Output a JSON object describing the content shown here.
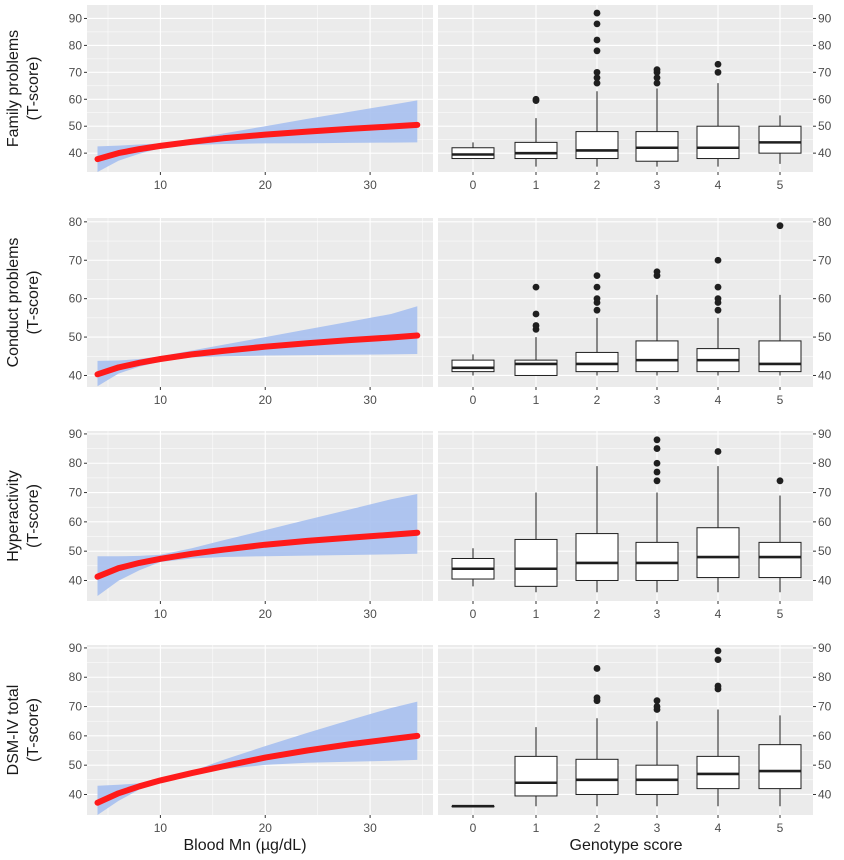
{
  "colors": {
    "panel_bg": "#ebebeb",
    "grid_major": "#ffffff",
    "band": "#a7c0ef",
    "fit_line": "#ff1a1a",
    "box_fill": "#ffffff",
    "box_stroke": "#1f1f1f",
    "tick_text": "#4d4d4d"
  },
  "x_title_left": "Blood Mn (µg/dL)",
  "x_title_right": "Genotype score",
  "chart_data": [
    {
      "type": "line",
      "name": "family-problems-blood-mn",
      "ylabel_lines": [
        "Family problems",
        "(T-score)"
      ],
      "xlabel": "Blood Mn (µg/dL)",
      "xlim": [
        3,
        36
      ],
      "ylim": [
        33,
        95
      ],
      "x_ticks": [
        10,
        20,
        30
      ],
      "y_ticks": [
        40,
        50,
        60,
        70,
        80,
        90
      ],
      "fit": {
        "x": [
          4,
          6,
          8,
          10,
          13,
          16,
          20,
          24,
          28,
          32,
          34.5
        ],
        "y": [
          37.8,
          40.0,
          41.5,
          42.7,
          44.2,
          45.5,
          46.9,
          48.0,
          49.0,
          49.9,
          50.5
        ]
      },
      "band_upper": {
        "x": [
          4,
          6,
          8,
          10,
          13,
          16,
          20,
          24,
          28,
          32,
          34.5
        ],
        "y": [
          42.5,
          42.8,
          43.2,
          43.6,
          45.3,
          47.3,
          50.0,
          52.7,
          55.3,
          57.9,
          59.6
        ]
      },
      "band_lower": {
        "x": [
          4,
          6,
          8,
          10,
          13,
          16,
          20,
          24,
          28,
          32,
          34.5
        ],
        "y": [
          33.0,
          37.2,
          39.8,
          41.8,
          43.0,
          43.4,
          43.6,
          43.7,
          43.8,
          43.9,
          44.0
        ]
      }
    },
    {
      "type": "box",
      "name": "family-problems-genotype",
      "xlabel": "Genotype score",
      "categories": [
        "0",
        "1",
        "2",
        "3",
        "4",
        "5"
      ],
      "ylim": [
        33,
        95
      ],
      "y_ticks": [
        40,
        50,
        60,
        70,
        80,
        90
      ],
      "boxes": [
        {
          "min": 38,
          "q1": 38,
          "median": 39.5,
          "q3": 42,
          "max": 44,
          "outliers": []
        },
        {
          "min": 35,
          "q1": 38,
          "median": 40,
          "q3": 44,
          "max": 53,
          "outliers": [
            59.5,
            60
          ]
        },
        {
          "min": 35,
          "q1": 38,
          "median": 41,
          "q3": 48,
          "max": 63,
          "outliers": [
            66,
            68,
            70,
            78,
            82,
            88,
            92
          ]
        },
        {
          "min": 35,
          "q1": 37,
          "median": 42,
          "q3": 48,
          "max": 64,
          "outliers": [
            66,
            68,
            70,
            71
          ]
        },
        {
          "min": 35,
          "q1": 38,
          "median": 42,
          "q3": 50,
          "max": 66,
          "outliers": [
            70,
            73
          ]
        },
        {
          "min": 36,
          "q1": 40,
          "median": 44,
          "q3": 50,
          "max": 54,
          "outliers": []
        }
      ]
    },
    {
      "type": "line",
      "name": "conduct-problems-blood-mn",
      "ylabel_lines": [
        "Conduct problems",
        "(T-score)"
      ],
      "xlabel": "Blood Mn (µg/dL)",
      "xlim": [
        3,
        36
      ],
      "ylim": [
        37,
        81
      ],
      "x_ticks": [
        10,
        20,
        30
      ],
      "y_ticks": [
        40,
        50,
        60,
        70,
        80
      ],
      "fit": {
        "x": [
          4,
          6,
          8,
          10,
          13,
          16,
          20,
          24,
          28,
          32,
          34.5
        ],
        "y": [
          40.3,
          42.1,
          43.3,
          44.3,
          45.5,
          46.4,
          47.5,
          48.4,
          49.2,
          49.9,
          50.4
        ]
      },
      "band_upper": {
        "x": [
          4,
          6,
          8,
          10,
          13,
          16,
          20,
          24,
          28,
          32,
          34.5
        ],
        "y": [
          43.8,
          43.9,
          44.3,
          45.0,
          46.5,
          48.0,
          50.0,
          52.0,
          54.0,
          56.0,
          58.0
        ]
      },
      "band_lower": {
        "x": [
          4,
          6,
          8,
          10,
          13,
          16,
          20,
          24,
          28,
          32,
          34.5
        ],
        "y": [
          37.2,
          40.5,
          42.3,
          43.6,
          44.7,
          45.0,
          45.2,
          45.3,
          45.4,
          45.5,
          45.6
        ]
      }
    },
    {
      "type": "box",
      "name": "conduct-problems-genotype",
      "xlabel": "Genotype score",
      "categories": [
        "0",
        "1",
        "2",
        "3",
        "4",
        "5"
      ],
      "ylim": [
        37,
        81
      ],
      "y_ticks": [
        40,
        50,
        60,
        70,
        80
      ],
      "boxes": [
        {
          "min": 40,
          "q1": 41,
          "median": 42,
          "q3": 44,
          "max": 45.5,
          "outliers": []
        },
        {
          "min": 40,
          "q1": 40,
          "median": 43,
          "q3": 44,
          "max": 50,
          "outliers": [
            52,
            53,
            56,
            63
          ]
        },
        {
          "min": 40,
          "q1": 41,
          "median": 43,
          "q3": 46,
          "max": 55,
          "outliers": [
            57,
            59,
            60,
            63,
            66
          ]
        },
        {
          "min": 40,
          "q1": 41,
          "median": 44,
          "q3": 49,
          "max": 61,
          "outliers": [
            66,
            67
          ]
        },
        {
          "min": 40,
          "q1": 41,
          "median": 44,
          "q3": 47,
          "max": 55,
          "outliers": [
            57,
            59,
            60,
            63,
            70
          ]
        },
        {
          "min": 40,
          "q1": 41,
          "median": 43,
          "q3": 49,
          "max": 61,
          "outliers": [
            79
          ]
        }
      ]
    },
    {
      "type": "line",
      "name": "hyperactivity-blood-mn",
      "ylabel_lines": [
        "Hyperactivity",
        "(T-score)"
      ],
      "xlabel": "Blood Mn (µg/dL)",
      "xlim": [
        3,
        36
      ],
      "ylim": [
        33,
        91
      ],
      "x_ticks": [
        10,
        20,
        30
      ],
      "y_ticks": [
        40,
        50,
        60,
        70,
        80,
        90
      ],
      "fit": {
        "x": [
          4,
          6,
          8,
          10,
          13,
          16,
          20,
          24,
          28,
          32,
          34.5
        ],
        "y": [
          41.3,
          44.2,
          46.0,
          47.4,
          49.1,
          50.5,
          52.2,
          53.5,
          54.6,
          55.6,
          56.3
        ]
      },
      "band_upper": {
        "x": [
          4,
          6,
          8,
          10,
          13,
          16,
          20,
          24,
          28,
          32,
          34.5
        ],
        "y": [
          48.3,
          48.3,
          48.4,
          48.8,
          51.0,
          53.7,
          57.2,
          60.7,
          64.2,
          67.7,
          69.5
        ]
      },
      "band_lower": {
        "x": [
          4,
          6,
          8,
          10,
          13,
          16,
          20,
          24,
          28,
          32,
          34.5
        ],
        "y": [
          34.7,
          39.9,
          43.5,
          46.3,
          47.5,
          48.0,
          48.3,
          48.5,
          48.7,
          48.9,
          49.1
        ]
      }
    },
    {
      "type": "box",
      "name": "hyperactivity-genotype",
      "xlabel": "Genotype score",
      "categories": [
        "0",
        "1",
        "2",
        "3",
        "4",
        "5"
      ],
      "ylim": [
        33,
        91
      ],
      "y_ticks": [
        40,
        50,
        60,
        70,
        80,
        90
      ],
      "boxes": [
        {
          "min": 38,
          "q1": 40.5,
          "median": 44,
          "q3": 47.5,
          "max": 51,
          "outliers": []
        },
        {
          "min": 36,
          "q1": 38,
          "median": 44,
          "q3": 54,
          "max": 70,
          "outliers": []
        },
        {
          "min": 36,
          "q1": 40,
          "median": 46,
          "q3": 56,
          "max": 79,
          "outliers": []
        },
        {
          "min": 36,
          "q1": 40,
          "median": 46,
          "q3": 53,
          "max": 70,
          "outliers": [
            74,
            77,
            80,
            85,
            88
          ]
        },
        {
          "min": 36,
          "q1": 41,
          "median": 48,
          "q3": 58,
          "max": 79,
          "outliers": [
            84
          ]
        },
        {
          "min": 36,
          "q1": 41,
          "median": 48,
          "q3": 53,
          "max": 69,
          "outliers": [
            74
          ]
        }
      ]
    },
    {
      "type": "line",
      "name": "dsm-iv-total-blood-mn",
      "ylabel_lines": [
        "DSM-IV total",
        "(T-score)"
      ],
      "xlabel": "Blood Mn (µg/dL)",
      "xlim": [
        3,
        36
      ],
      "ylim": [
        33,
        91
      ],
      "x_ticks": [
        10,
        20,
        30
      ],
      "y_ticks": [
        40,
        50,
        60,
        70,
        80,
        90
      ],
      "fit": {
        "x": [
          4,
          6,
          8,
          10,
          13,
          16,
          20,
          24,
          28,
          32,
          34.5
        ],
        "y": [
          37.2,
          40.4,
          42.8,
          44.8,
          47.3,
          49.6,
          52.6,
          55.0,
          57.1,
          58.9,
          60.0
        ]
      },
      "band_upper": {
        "x": [
          4,
          6,
          8,
          10,
          13,
          16,
          20,
          24,
          28,
          32,
          34.5
        ],
        "y": [
          43.0,
          43.3,
          43.8,
          44.9,
          47.9,
          51.8,
          56.5,
          61.0,
          65.3,
          69.5,
          71.7
        ]
      },
      "band_lower": {
        "x": [
          4,
          6,
          8,
          10,
          13,
          16,
          20,
          24,
          28,
          32,
          34.5
        ],
        "y": [
          33.0,
          37.8,
          41.7,
          44.2,
          46.8,
          48.6,
          50.1,
          50.8,
          51.2,
          51.5,
          51.8
        ]
      }
    },
    {
      "type": "box",
      "name": "dsm-iv-total-genotype",
      "xlabel": "Genotype score",
      "categories": [
        "0",
        "1",
        "2",
        "3",
        "4",
        "5"
      ],
      "ylim": [
        33,
        91
      ],
      "y_ticks": [
        40,
        50,
        60,
        70,
        80,
        90
      ],
      "boxes": [
        {
          "min": 36,
          "q1": 36,
          "median": 36,
          "q3": 36,
          "max": 36,
          "outliers": []
        },
        {
          "min": 36,
          "q1": 39.5,
          "median": 44,
          "q3": 53,
          "max": 63,
          "outliers": []
        },
        {
          "min": 36,
          "q1": 40,
          "median": 45,
          "q3": 52,
          "max": 66,
          "outliers": [
            72,
            73,
            83
          ]
        },
        {
          "min": 36,
          "q1": 40,
          "median": 45,
          "q3": 50,
          "max": 65,
          "outliers": [
            69,
            70,
            72
          ]
        },
        {
          "min": 36,
          "q1": 42,
          "median": 47,
          "q3": 53,
          "max": 69,
          "outliers": [
            76,
            77,
            86,
            89
          ]
        },
        {
          "min": 36,
          "q1": 42,
          "median": 48,
          "q3": 57,
          "max": 67,
          "outliers": []
        }
      ]
    }
  ]
}
